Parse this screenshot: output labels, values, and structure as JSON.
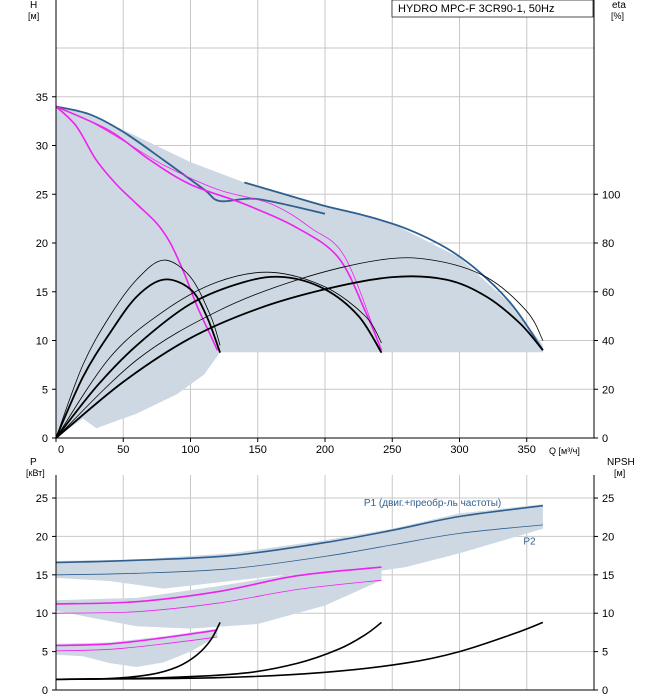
{
  "title": "HYDRO MPC-F 3CR90-1, 50Hz",
  "colors": {
    "envelope": "#cdd8e3",
    "blue": "#2e5f8f",
    "magenta": "#ee22ee",
    "black": "#000000",
    "grid": "#c8c8c8"
  },
  "chart_data": [
    {
      "type": "line",
      "name": "qh-eta",
      "title": "HYDRO MPC-F 3CR90-1, 50Hz",
      "x_unit": "Q [м³/ч]",
      "y_label": "H",
      "y_unit": "[м]",
      "y2_label": "eta",
      "y2_unit": "[%]",
      "xlim": [
        0,
        400
      ],
      "ylim": [
        0,
        40
      ],
      "y2lim": [
        0,
        160
      ],
      "x_ticks": [
        0,
        50,
        100,
        150,
        200,
        250,
        300,
        350
      ],
      "y_ticks": [
        0,
        5,
        10,
        15,
        20,
        25,
        30,
        35
      ],
      "y2_ticks": [
        0,
        20,
        40,
        60,
        80,
        100
      ],
      "envelope": {
        "top": [
          [
            0,
            34
          ],
          [
            15,
            33.7
          ],
          [
            50,
            31.6
          ],
          [
            100,
            28.3
          ],
          [
            140,
            26.2
          ],
          [
            200,
            23.8
          ],
          [
            250,
            22
          ],
          [
            300,
            18.5
          ],
          [
            340,
            13.5
          ],
          [
            362,
            9.5
          ]
        ],
        "bottom": [
          [
            0,
            0
          ],
          [
            20,
            2
          ],
          [
            30,
            1
          ],
          [
            60,
            2.5
          ],
          [
            90,
            4.5
          ],
          [
            110,
            6.5
          ],
          [
            122,
            8.8
          ],
          [
            362,
            8.8
          ]
        ]
      },
      "series": [
        {
          "name": "H-1 pump max",
          "axis": "y",
          "color": "blue",
          "points": [
            [
              0,
              34
            ],
            [
              25,
              33.2
            ],
            [
              50,
              31.4
            ],
            [
              80,
              28.5
            ],
            [
              110,
              25.5
            ],
            [
              122,
              24.3
            ],
            [
              150,
              24.5
            ],
            [
              200,
              23
            ]
          ]
        },
        {
          "name": "H max",
          "axis": "y",
          "color": "blue",
          "points": [
            [
              140,
              26.2
            ],
            [
              170,
              25
            ],
            [
              200,
              23.8
            ],
            [
              230,
              22.8
            ],
            [
              260,
              21.5
            ],
            [
              290,
              19.5
            ],
            [
              315,
              17
            ],
            [
              340,
              13.5
            ],
            [
              362,
              9
            ]
          ]
        },
        {
          "name": "H-1 pump min speed",
          "axis": "y",
          "color": "magenta",
          "points": [
            [
              0,
              34
            ],
            [
              15,
              32
            ],
            [
              30,
              28.5
            ],
            [
              45,
              26
            ],
            [
              60,
              24
            ],
            [
              75,
              22
            ],
            [
              85,
              20
            ],
            [
              95,
              17
            ],
            [
              105,
              13.5
            ],
            [
              115,
              10.5
            ],
            [
              120,
              9
            ]
          ]
        },
        {
          "name": "H-2 pumps reduced speed",
          "axis": "y",
          "color": "magenta",
          "points": [
            [
              0,
              34
            ],
            [
              40,
              31.5
            ],
            [
              70,
              28.5
            ],
            [
              100,
              26
            ],
            [
              140,
              24
            ],
            [
              180,
              21.5
            ],
            [
              210,
              18.5
            ],
            [
              230,
              13
            ],
            [
              242,
              9
            ]
          ]
        },
        {
          "name": "H-2 pumps thin",
          "axis": "y",
          "color": "magenta",
          "points": [
            [
              0,
              34
            ],
            [
              25,
              32.5
            ],
            [
              50,
              30.5
            ],
            [
              80,
              28
            ],
            [
              120,
              25.5
            ],
            [
              160,
              24
            ],
            [
              190,
              21.5
            ],
            [
              215,
              18.5
            ],
            [
              242,
              9
            ]
          ]
        },
        {
          "name": "eta 1 pump",
          "axis": "y2",
          "color": "black",
          "points": [
            [
              0,
              0
            ],
            [
              20,
              25
            ],
            [
              40,
              43
            ],
            [
              60,
              58
            ],
            [
              80,
              65
            ],
            [
              100,
              61
            ],
            [
              112,
              50
            ],
            [
              122,
              35
            ]
          ]
        },
        {
          "name": "eta 2 pumps",
          "axis": "y2",
          "color": "black",
          "points": [
            [
              0,
              0
            ],
            [
              30,
              21
            ],
            [
              60,
              38
            ],
            [
              100,
              55
            ],
            [
              140,
              64
            ],
            [
              170,
              66
            ],
            [
              200,
              61
            ],
            [
              225,
              50
            ],
            [
              242,
              35
            ]
          ]
        },
        {
          "name": "eta 3 pumps",
          "axis": "y2",
          "color": "black",
          "points": [
            [
              0,
              0
            ],
            [
              50,
              23
            ],
            [
              100,
              41
            ],
            [
              150,
              53
            ],
            [
              200,
              61
            ],
            [
              250,
              66
            ],
            [
              290,
              65
            ],
            [
              320,
              58
            ],
            [
              345,
              47
            ],
            [
              362,
              36
            ]
          ]
        },
        {
          "name": "eta 1 pump thin",
          "axis": "y2",
          "color": "black",
          "points": [
            [
              0,
              0
            ],
            [
              20,
              30
            ],
            [
              40,
              50
            ],
            [
              60,
              65
            ],
            [
              80,
              73
            ],
            [
              100,
              66
            ],
            [
              115,
              50
            ],
            [
              122,
              38
            ]
          ]
        },
        {
          "name": "eta 2 pumps thin",
          "axis": "y2",
          "color": "black",
          "points": [
            [
              0,
              0
            ],
            [
              40,
              33
            ],
            [
              80,
              52
            ],
            [
              120,
              64
            ],
            [
              160,
              68
            ],
            [
              200,
              62
            ],
            [
              230,
              50
            ],
            [
              242,
              39
            ]
          ]
        },
        {
          "name": "eta 3 pumps thin",
          "axis": "y2",
          "color": "black",
          "points": [
            [
              0,
              0
            ],
            [
              60,
              32
            ],
            [
              120,
              52
            ],
            [
              180,
              65
            ],
            [
              240,
              73
            ],
            [
              280,
              73
            ],
            [
              320,
              66
            ],
            [
              350,
              52
            ],
            [
              362,
              40
            ]
          ]
        }
      ]
    },
    {
      "type": "line",
      "name": "power-npsh",
      "x_unit": "",
      "y_label": "P",
      "y_unit": "[кВт]",
      "y2_label": "NPSH",
      "y2_unit": "[м]",
      "xlim": [
        0,
        400
      ],
      "ylim": [
        0,
        28
      ],
      "y2lim": [
        0,
        28
      ],
      "y_ticks": [
        0,
        5,
        10,
        15,
        20,
        25
      ],
      "y2_ticks": [
        0,
        5,
        10,
        15,
        20,
        25
      ],
      "labels": [
        {
          "text": "P1 (двиг.+преобр-ль частоты)",
          "x": 280,
          "y": 24.5,
          "color": "blue"
        },
        {
          "text": "P2",
          "x": 352,
          "y": 19.5,
          "color": "blue"
        }
      ],
      "bands": [
        {
          "top": [
            [
              0,
              16.8
            ],
            [
              60,
              17
            ],
            [
              130,
              17.8
            ],
            [
              200,
              19.5
            ],
            [
              250,
              21
            ],
            [
              300,
              23
            ],
            [
              362,
              24.2
            ]
          ],
          "bottom": [
            [
              0,
              14.6
            ],
            [
              40,
              14.2
            ],
            [
              80,
              13.2
            ],
            [
              120,
              14
            ],
            [
              180,
              15.2
            ],
            [
              220,
              15
            ],
            [
              260,
              16
            ],
            [
              300,
              17.8
            ],
            [
              362,
              21
            ]
          ]
        },
        {
          "top": [
            [
              0,
              11.7
            ],
            [
              60,
              12
            ],
            [
              120,
              13.5
            ],
            [
              180,
              15.2
            ],
            [
              242,
              16.2
            ]
          ],
          "bottom": [
            [
              0,
              10.3
            ],
            [
              30,
              9.3
            ],
            [
              60,
              8.3
            ],
            [
              100,
              8
            ],
            [
              150,
              8.6
            ],
            [
              200,
              11
            ],
            [
              242,
              14.3
            ]
          ]
        },
        {
          "top": [
            [
              0,
              6
            ],
            [
              40,
              6.2
            ],
            [
              80,
              7
            ],
            [
              120,
              8
            ]
          ],
          "bottom": [
            [
              0,
              4.6
            ],
            [
              20,
              4.4
            ],
            [
              40,
              3.5
            ],
            [
              60,
              3
            ],
            [
              80,
              3.6
            ],
            [
              100,
              5
            ],
            [
              120,
              7
            ]
          ]
        }
      ],
      "series": [
        {
          "name": "P1 3 pumps",
          "axis": "y",
          "color": "blue",
          "points": [
            [
              0,
              16.6
            ],
            [
              60,
              16.9
            ],
            [
              130,
              17.5
            ],
            [
              200,
              19.2
            ],
            [
              250,
              20.8
            ],
            [
              300,
              22.6
            ],
            [
              362,
              24
            ]
          ]
        },
        {
          "name": "P2 3 pumps",
          "axis": "y",
          "color": "blue",
          "points": [
            [
              0,
              15
            ],
            [
              60,
              15.2
            ],
            [
              130,
              15.8
            ],
            [
              200,
              17.4
            ],
            [
              250,
              18.9
            ],
            [
              300,
              20.4
            ],
            [
              362,
              21.5
            ]
          ]
        },
        {
          "name": "P1 2 pumps",
          "axis": "y",
          "color": "magenta",
          "points": [
            [
              0,
              11.2
            ],
            [
              60,
              11.5
            ],
            [
              120,
              12.8
            ],
            [
              180,
              14.9
            ],
            [
              242,
              16
            ]
          ]
        },
        {
          "name": "P2 2 pumps",
          "axis": "y",
          "color": "magenta",
          "points": [
            [
              0,
              10
            ],
            [
              60,
              10.2
            ],
            [
              120,
              11.3
            ],
            [
              180,
              13.1
            ],
            [
              242,
              14.3
            ]
          ]
        },
        {
          "name": "P1 1 pump",
          "axis": "y",
          "color": "magenta",
          "points": [
            [
              0,
              5.8
            ],
            [
              40,
              6
            ],
            [
              80,
              6.8
            ],
            [
              120,
              7.8
            ]
          ]
        },
        {
          "name": "P2 1 pump",
          "axis": "y",
          "color": "magenta",
          "points": [
            [
              0,
              5.1
            ],
            [
              40,
              5.3
            ],
            [
              80,
              6
            ],
            [
              120,
              6.9
            ]
          ]
        },
        {
          "name": "NPSH 1 pump",
          "axis": "y2",
          "color": "black",
          "points": [
            [
              0,
              1.4
            ],
            [
              40,
              1.5
            ],
            [
              70,
              2
            ],
            [
              90,
              3
            ],
            [
              105,
              4.6
            ],
            [
              115,
              6.5
            ],
            [
              122,
              8.8
            ]
          ]
        },
        {
          "name": "NPSH 2 pumps",
          "axis": "y2",
          "color": "black",
          "points": [
            [
              0,
              1.4
            ],
            [
              80,
              1.6
            ],
            [
              140,
              2.2
            ],
            [
              180,
              3.5
            ],
            [
              210,
              5.3
            ],
            [
              230,
              7.2
            ],
            [
              242,
              8.8
            ]
          ]
        },
        {
          "name": "NPSH 3 pumps",
          "axis": "y2",
          "color": "black",
          "points": [
            [
              0,
              1.4
            ],
            [
              120,
              1.6
            ],
            [
              200,
              2.3
            ],
            [
              260,
              3.5
            ],
            [
              300,
              5
            ],
            [
              340,
              7.3
            ],
            [
              362,
              8.8
            ]
          ]
        }
      ]
    }
  ]
}
